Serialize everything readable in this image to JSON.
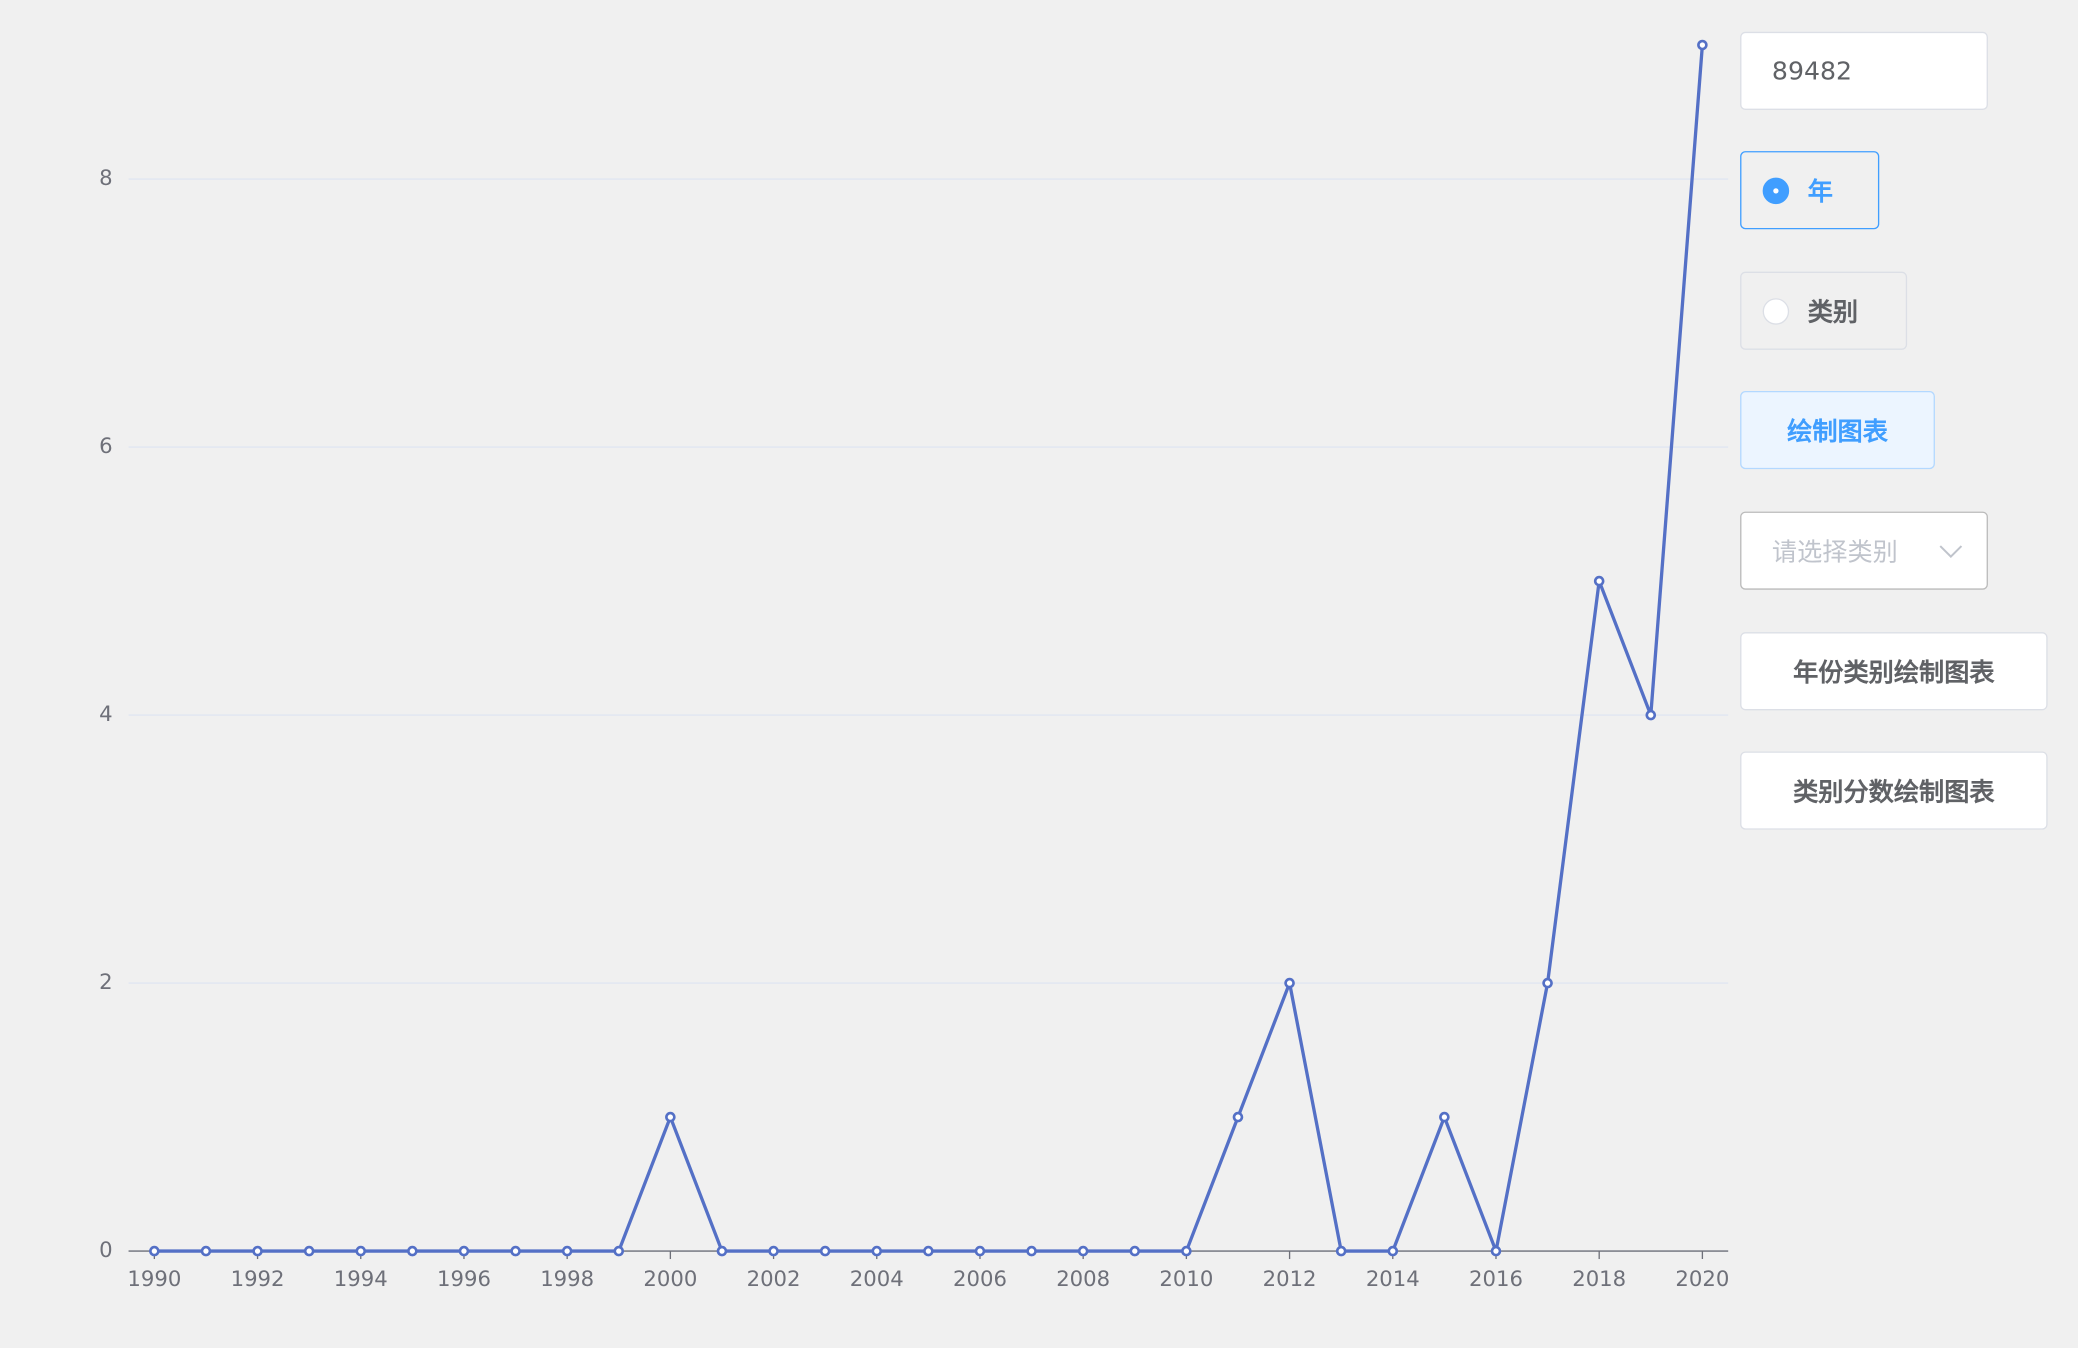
{
  "chart_data": {
    "type": "line",
    "x": [
      1990,
      1991,
      1992,
      1993,
      1994,
      1995,
      1996,
      1997,
      1998,
      1999,
      2000,
      2001,
      2002,
      2003,
      2004,
      2005,
      2006,
      2007,
      2008,
      2009,
      2010,
      2011,
      2012,
      2013,
      2014,
      2015,
      2016,
      2017,
      2018,
      2019,
      2020
    ],
    "values": [
      0,
      0,
      0,
      0,
      0,
      0,
      0,
      0,
      0,
      0,
      1,
      0,
      0,
      0,
      0,
      0,
      0,
      0,
      0,
      0,
      0,
      1,
      2,
      0,
      0,
      1,
      0,
      2,
      5,
      4,
      9
    ],
    "color": "#5470c6",
    "xlim": [
      1989.5,
      2020.5
    ],
    "xticks": [
      1990,
      1992,
      1994,
      1996,
      1998,
      2000,
      2002,
      2004,
      2006,
      2008,
      2010,
      2012,
      2014,
      2016,
      2018,
      2020
    ],
    "ylim": [
      0,
      9
    ],
    "yticks": [
      0,
      2,
      4,
      6,
      8
    ],
    "grid": true
  },
  "controls": {
    "input_value": "89482",
    "radio_options": [
      "年",
      "类别"
    ],
    "radio_selected": 0,
    "draw_button": "绘制图表",
    "select_placeholder": "请选择类别",
    "buttons": [
      "年份类别绘制图表",
      "类别分数绘制图表"
    ]
  }
}
